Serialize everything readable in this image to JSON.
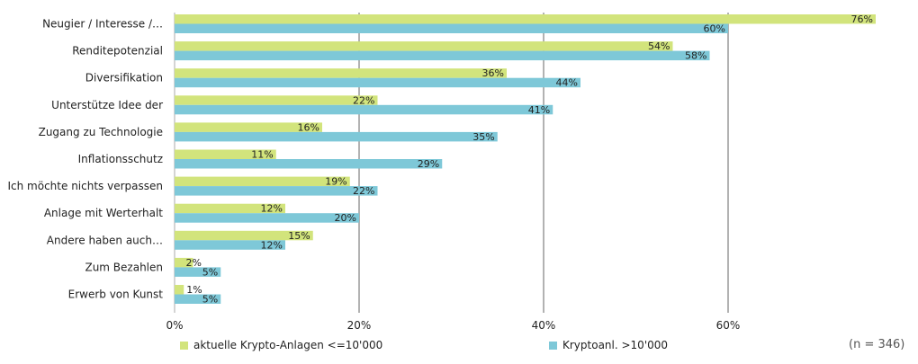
{
  "chart_data": {
    "type": "bar",
    "orientation": "horizontal",
    "categories": [
      "Neugier / Interesse /…",
      "Renditepotenzial",
      "Diversifikation",
      "Unterstütze Idee der",
      "Zugang zu Technologie",
      "Inflationsschutz",
      "Ich möchte nichts verpassen",
      "Anlage mit Werterhalt",
      "Andere haben auch…",
      "Zum Bezahlen",
      "Erwerb von Kunst"
    ],
    "series": [
      {
        "name": "aktuelle Krypto-Anlagen <=10'000",
        "color": "#d2e47c",
        "values": [
          76,
          54,
          36,
          22,
          16,
          11,
          19,
          12,
          15,
          2,
          1
        ]
      },
      {
        "name": "Kryptoanl. >10'000",
        "color": "#7ec8d8",
        "values": [
          60,
          58,
          44,
          41,
          35,
          29,
          22,
          20,
          12,
          5,
          5
        ]
      }
    ],
    "xlim": [
      0,
      80
    ],
    "xticks": [
      0,
      20,
      40,
      60
    ],
    "value_suffix": "%",
    "grid": "vertical",
    "legend_position": "bottom"
  },
  "note": "(n = 346)"
}
